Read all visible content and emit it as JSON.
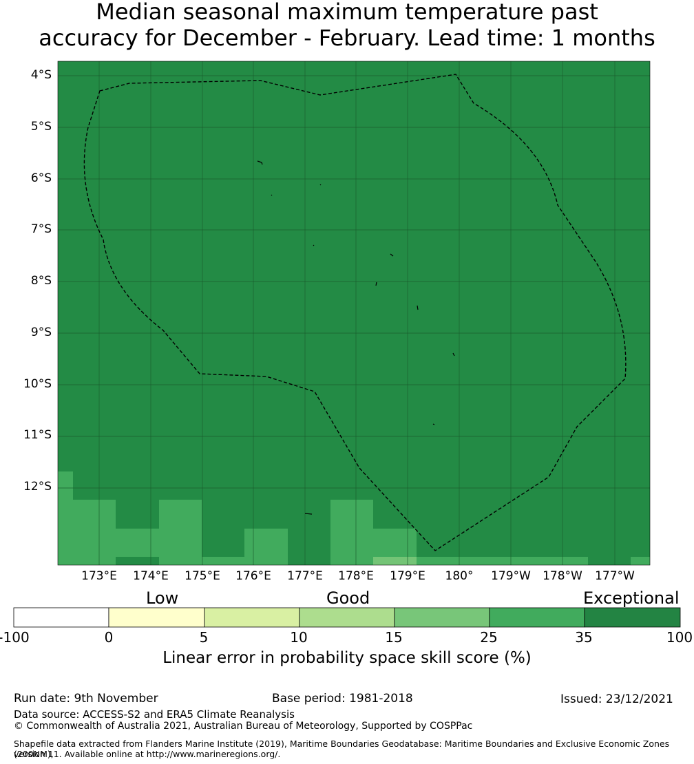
{
  "title": {
    "line1": "Median seasonal maximum temperature past",
    "line2": "accuracy for December - February. Lead time: 1 months"
  },
  "map": {
    "lat_labels": [
      "4°S",
      "5°S",
      "6°S",
      "7°S",
      "8°S",
      "9°S",
      "10°S",
      "11°S",
      "12°S"
    ],
    "lon_labels": [
      "173°E",
      "174°E",
      "175°E",
      "176°E",
      "177°E",
      "178°E",
      "179°E",
      "180°",
      "179°W",
      "178°W",
      "177°W"
    ],
    "background_category": "35 to 100",
    "cell_colors": {
      "35 to 100": "#238b45",
      "25 to 35": "#41ab5d",
      "15 to 25": "#74c476"
    },
    "eez_boundary_style": "dashed black line",
    "grid": true
  },
  "legend": {
    "categories": [
      "Low",
      "Good",
      "Exceptional"
    ],
    "ticks": [
      "-100",
      "0",
      "5",
      "10",
      "15",
      "25",
      "35",
      "100"
    ],
    "colors": [
      "#ffffff",
      "#ffffcc",
      "#d9f0a3",
      "#addd8e",
      "#78c679",
      "#41ab5d",
      "#238443"
    ],
    "label": "Linear error in probability space skill score (%)"
  },
  "footer": {
    "run_date": "Run date: 9th November",
    "base_period": "Base period: 1981-2018",
    "issued": "Issued: 23/12/2021",
    "data_source": "Data source: ACCESS-S2 and ERA5 Climate Reanalysis",
    "copyright": "© Commonwealth of Australia 2021, Australian Bureau of Meteorology, Supported by COSPPac",
    "shapefile_line1": "Shapefile data extracted from Flanders Marine Institute (2019), Maritime Boundaries Geodatabase: Maritime Boundaries and Exclusive Economic Zones (200NM),",
    "shapefile_line2": "version 11. Available online at http://www.marineregions.org/."
  }
}
